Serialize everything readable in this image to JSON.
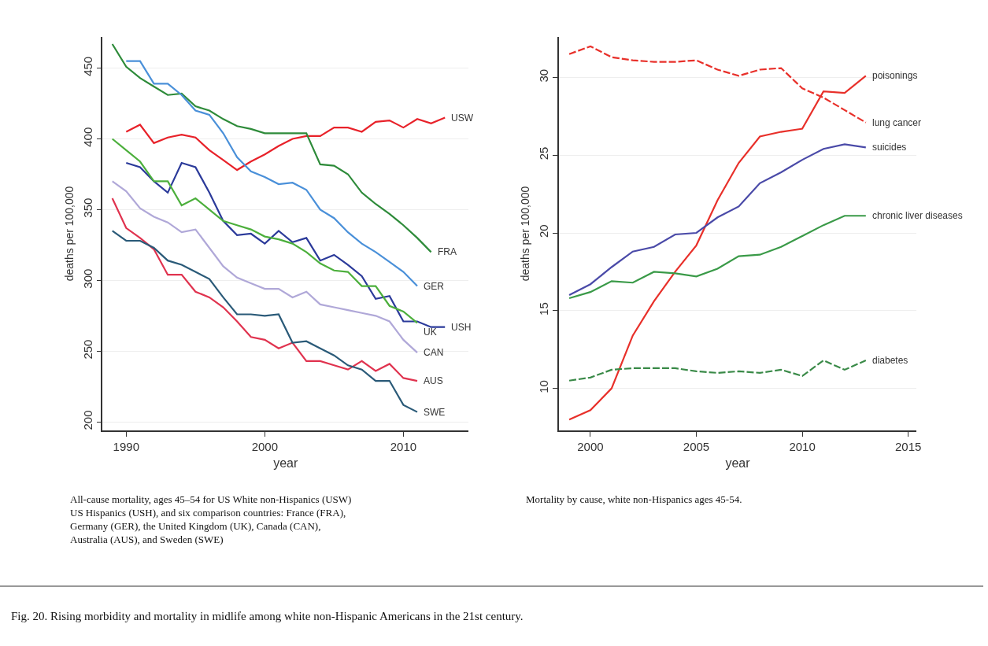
{
  "chart_data": [
    {
      "type": "line",
      "xlabel": "year",
      "ylabel": "deaths per 100,000",
      "xlim": [
        1988.3,
        2014.7
      ],
      "ylim": [
        194,
        472
      ],
      "xticks": [
        1990,
        2000,
        2010
      ],
      "yticks": [
        200,
        250,
        300,
        350,
        400,
        450
      ],
      "grid": "y",
      "legend": false,
      "marker": "none",
      "x": [
        1989,
        1990,
        1991,
        1992,
        1993,
        1994,
        1995,
        1996,
        1997,
        1998,
        1999,
        2000,
        2001,
        2002,
        2003,
        2004,
        2005,
        2006,
        2007,
        2008,
        2009,
        2010,
        2011,
        2012,
        2013
      ],
      "series": [
        {
          "name": "USW",
          "color": "#e8222a",
          "values": [
            null,
            405,
            410,
            397,
            401,
            403,
            401,
            392,
            385,
            378,
            384,
            389,
            395,
            400,
            402,
            402,
            408,
            408,
            405,
            412,
            413,
            408,
            414,
            411,
            415
          ]
        },
        {
          "name": "FRA",
          "color": "#2e8b3a",
          "values": [
            467,
            451,
            443,
            437,
            431,
            432,
            423,
            420,
            414,
            409,
            407,
            404,
            404,
            404,
            404,
            382,
            381,
            375,
            362,
            354,
            347,
            339,
            330,
            320,
            null
          ]
        },
        {
          "name": "GER",
          "color": "#4a90d9",
          "values": [
            null,
            455,
            455,
            439,
            439,
            431,
            420,
            417,
            404,
            387,
            377,
            373,
            368,
            369,
            364,
            350,
            344,
            334,
            326,
            320,
            313,
            306,
            296,
            null,
            null
          ]
        },
        {
          "name": "USH",
          "color": "#2b3a9a",
          "values": [
            null,
            383,
            380,
            370,
            362,
            383,
            380,
            362,
            342,
            332,
            333,
            326,
            335,
            327,
            330,
            314,
            318,
            311,
            303,
            287,
            289,
            271,
            271,
            267,
            267
          ]
        },
        {
          "name": "UK",
          "color": "#4caf3c",
          "values": [
            400,
            392,
            384,
            370,
            370,
            353,
            358,
            350,
            342,
            339,
            336,
            331,
            329,
            326,
            320,
            312,
            307,
            306,
            296,
            296,
            282,
            278,
            270,
            null,
            null
          ]
        },
        {
          "name": "CAN",
          "color": "#b0a8d8",
          "values": [
            370,
            363,
            351,
            345,
            341,
            334,
            336,
            323,
            310,
            302,
            298,
            294,
            294,
            288,
            292,
            283,
            281,
            279,
            277,
            275,
            271,
            258,
            249,
            null,
            null
          ]
        },
        {
          "name": "AUS",
          "color": "#e0334f",
          "values": [
            358,
            337,
            330,
            322,
            304,
            304,
            292,
            288,
            281,
            271,
            260,
            258,
            252,
            256,
            243,
            243,
            240,
            237,
            243,
            236,
            241,
            231,
            229,
            null,
            null
          ]
        },
        {
          "name": "SWE",
          "color": "#2a5a78",
          "values": [
            335,
            328,
            328,
            323,
            314,
            311,
            306,
            301,
            288,
            276,
            276,
            275,
            276,
            256,
            257,
            252,
            247,
            240,
            237,
            229,
            229,
            212,
            207,
            null,
            null
          ]
        }
      ],
      "annotations": [
        "All-cause mortality, ages 45–54 for US White non-Hispanics (USW)\nUS Hispanics (USH), and six comparison countries: France (FRA),\nGermany (GER), the United Kingdom (UK), Canada (CAN),\nAustralia (AUS), and Sweden (SWE)"
      ]
    },
    {
      "type": "line",
      "xlabel": "year",
      "ylabel": "deaths per 100,000",
      "xlim": [
        1998.5,
        2015.4
      ],
      "ylim": [
        7.3,
        32.6
      ],
      "xticks": [
        2000,
        2005,
        2010,
        2015
      ],
      "yticks": [
        10,
        15,
        20,
        25,
        30
      ],
      "grid": "y",
      "legend": false,
      "marker": "none",
      "x": [
        1999,
        2000,
        2001,
        2002,
        2003,
        2004,
        2005,
        2006,
        2007,
        2008,
        2009,
        2010,
        2011,
        2012,
        2013
      ],
      "series": [
        {
          "name": "poisonings",
          "color": "#e8302a",
          "line_style": "solid",
          "values": [
            8.0,
            8.6,
            10.0,
            13.4,
            15.6,
            17.5,
            19.2,
            22.1,
            24.5,
            26.2,
            26.5,
            26.7,
            29.1,
            29.0,
            30.1
          ]
        },
        {
          "name": "lung cancer",
          "color": "#e8302a",
          "line_style": "dashed",
          "values": [
            31.5,
            32.0,
            31.3,
            31.1,
            31.0,
            31.0,
            31.1,
            30.5,
            30.1,
            30.5,
            30.6,
            29.3,
            28.7,
            27.9,
            27.1
          ]
        },
        {
          "name": "suicides",
          "color": "#4a4aa8",
          "line_style": "solid",
          "values": [
            16.0,
            16.7,
            17.8,
            18.8,
            19.1,
            19.9,
            20.0,
            21.0,
            21.7,
            23.2,
            23.9,
            24.7,
            25.4,
            25.7,
            25.5
          ]
        },
        {
          "name": "chronic liver diseases",
          "color": "#3a9a48",
          "line_style": "solid",
          "values": [
            15.8,
            16.2,
            16.9,
            16.8,
            17.5,
            17.4,
            17.2,
            17.7,
            18.5,
            18.6,
            19.1,
            19.8,
            20.5,
            21.1,
            21.1
          ]
        },
        {
          "name": "diabetes",
          "color": "#3a8a48",
          "line_style": "dashed",
          "values": [
            10.5,
            10.7,
            11.2,
            11.3,
            11.3,
            11.3,
            11.1,
            11.0,
            11.1,
            11.0,
            11.2,
            10.8,
            11.8,
            11.2,
            11.8
          ]
        }
      ],
      "annotations": [
        "Mortality by cause, white non-Hispanics ages 45-54.",
        "Fig. 20. Rising morbidity and mortality in midlife among white non-Hispanic Americans in the 21st century."
      ]
    }
  ]
}
